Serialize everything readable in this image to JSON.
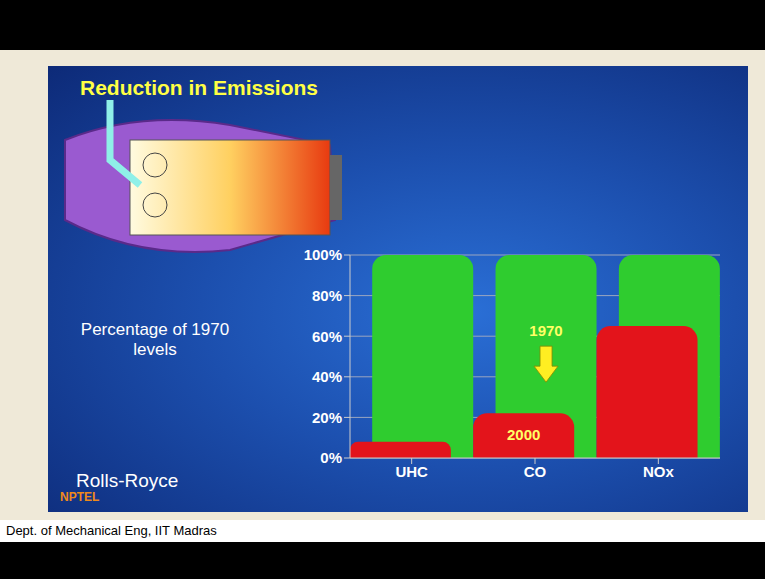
{
  "chart_data": {
    "type": "bar",
    "title": "Reduction in Emissions",
    "y_label": "Percentage of 1970 levels",
    "categories": [
      "UHC",
      "CO",
      "NOx"
    ],
    "series": [
      {
        "name": "1970",
        "color": "#2fcc2f",
        "values": [
          100,
          100,
          100
        ]
      },
      {
        "name": "2000",
        "color": "#e3141b",
        "values": [
          8,
          22,
          65
        ]
      }
    ],
    "ylim": [
      0,
      100
    ],
    "yticks": [
      {
        "value": 0,
        "label": "0%"
      },
      {
        "value": 20,
        "label": "20%"
      },
      {
        "value": 40,
        "label": "40%"
      },
      {
        "value": 60,
        "label": "60%"
      },
      {
        "value": 80,
        "label": "80%"
      },
      {
        "value": 100,
        "label": "100%"
      }
    ],
    "grid": true,
    "stacked": false,
    "annotations": [
      "Rolls-Royce",
      "NPTEL",
      "Dept. of Mechanical Eng, IIT Madras"
    ]
  }
}
